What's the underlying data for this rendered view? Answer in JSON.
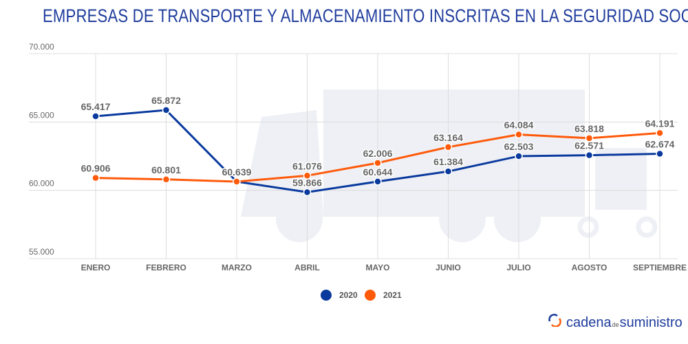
{
  "title": "EMPRESAS DE TRANSPORTE Y ALMACENAMIENTO INSCRITAS EN LA SEGURIDAD SOCIAL",
  "chart_data": {
    "type": "line",
    "title": "EMPRESAS DE TRANSPORTE Y ALMACENAMIENTO INSCRITAS EN LA SEGURIDAD SOCIAL",
    "categories": [
      "ENERO",
      "FEBRERO",
      "MARZO",
      "ABRIL",
      "MAYO",
      "JUNIO",
      "JULIO",
      "AGOSTO",
      "SEPTIEMBRE"
    ],
    "series": [
      {
        "name": "2020",
        "color": "#0a3a9e",
        "values": [
          65417,
          65872,
          null,
          59866,
          60644,
          61384,
          62503,
          62571,
          62674
        ],
        "labels": [
          "65.417",
          "65.872",
          "",
          "59.866",
          "60.644",
          "61.384",
          "62.503",
          "62.571",
          "62.674"
        ]
      },
      {
        "name": "2021",
        "color": "#ff5a0a",
        "values": [
          60906,
          60801,
          60639,
          61076,
          62006,
          63164,
          64084,
          63818,
          64191
        ],
        "labels": [
          "60.906",
          "60.801",
          "60.639",
          "61.076",
          "62.006",
          "63.164",
          "64.084",
          "63.818",
          "64.191"
        ]
      }
    ],
    "ylim": [
      55000,
      70000
    ],
    "yticks": [
      {
        "v": 55000,
        "label": "55.000"
      },
      {
        "v": 60000,
        "label": "60.000"
      },
      {
        "v": 65000,
        "label": "65.000"
      },
      {
        "v": 70000,
        "label": "70.000"
      }
    ],
    "grid": true,
    "legend": "bottom-center"
  },
  "logo": {
    "part1": "cadena",
    "part2": "de",
    "part3": "suministro"
  }
}
